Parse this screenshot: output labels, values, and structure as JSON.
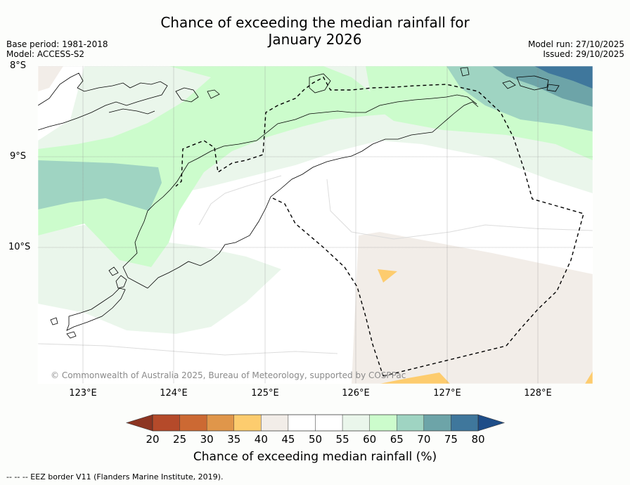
{
  "title": {
    "line1": "Chance of exceeding the median rainfall for",
    "line2": "January 2026"
  },
  "meta_left": {
    "base_period": "Base period: 1981-2018",
    "model": "Model: ACCESS-S2"
  },
  "meta_right": {
    "model_run": "Model run: 27/10/2025",
    "issued": "Issued: 29/10/2025"
  },
  "lat_labels": [
    "8°S",
    "9°S",
    "10°S"
  ],
  "lon_labels": [
    "123°E",
    "124°E",
    "125°E",
    "126°E",
    "127°E",
    "128°E"
  ],
  "copyright": "© Commonwealth of Australia 2025, Bureau of Meteorology, supported by COSPPac",
  "colorbar": {
    "ticks": [
      "20",
      "25",
      "30",
      "35",
      "40",
      "45",
      "50",
      "55",
      "60",
      "65",
      "70",
      "75",
      "80"
    ],
    "colors": [
      "#b54a2a",
      "#cc6933",
      "#e0964a",
      "#fdcc6e",
      "#f2ede8",
      "#ffffff",
      "#ffffff",
      "#eaf6eb",
      "#ccfccc",
      "#9fd4c2",
      "#6da4a8",
      "#3f779c"
    ],
    "under_color": "#8d3522",
    "over_color": "#1e4d88",
    "label": "Chance of exceeding median rainfall (%)"
  },
  "footer": "--  --  -- EEZ border V11 (Flanders Marine Institute, 2019)."
}
